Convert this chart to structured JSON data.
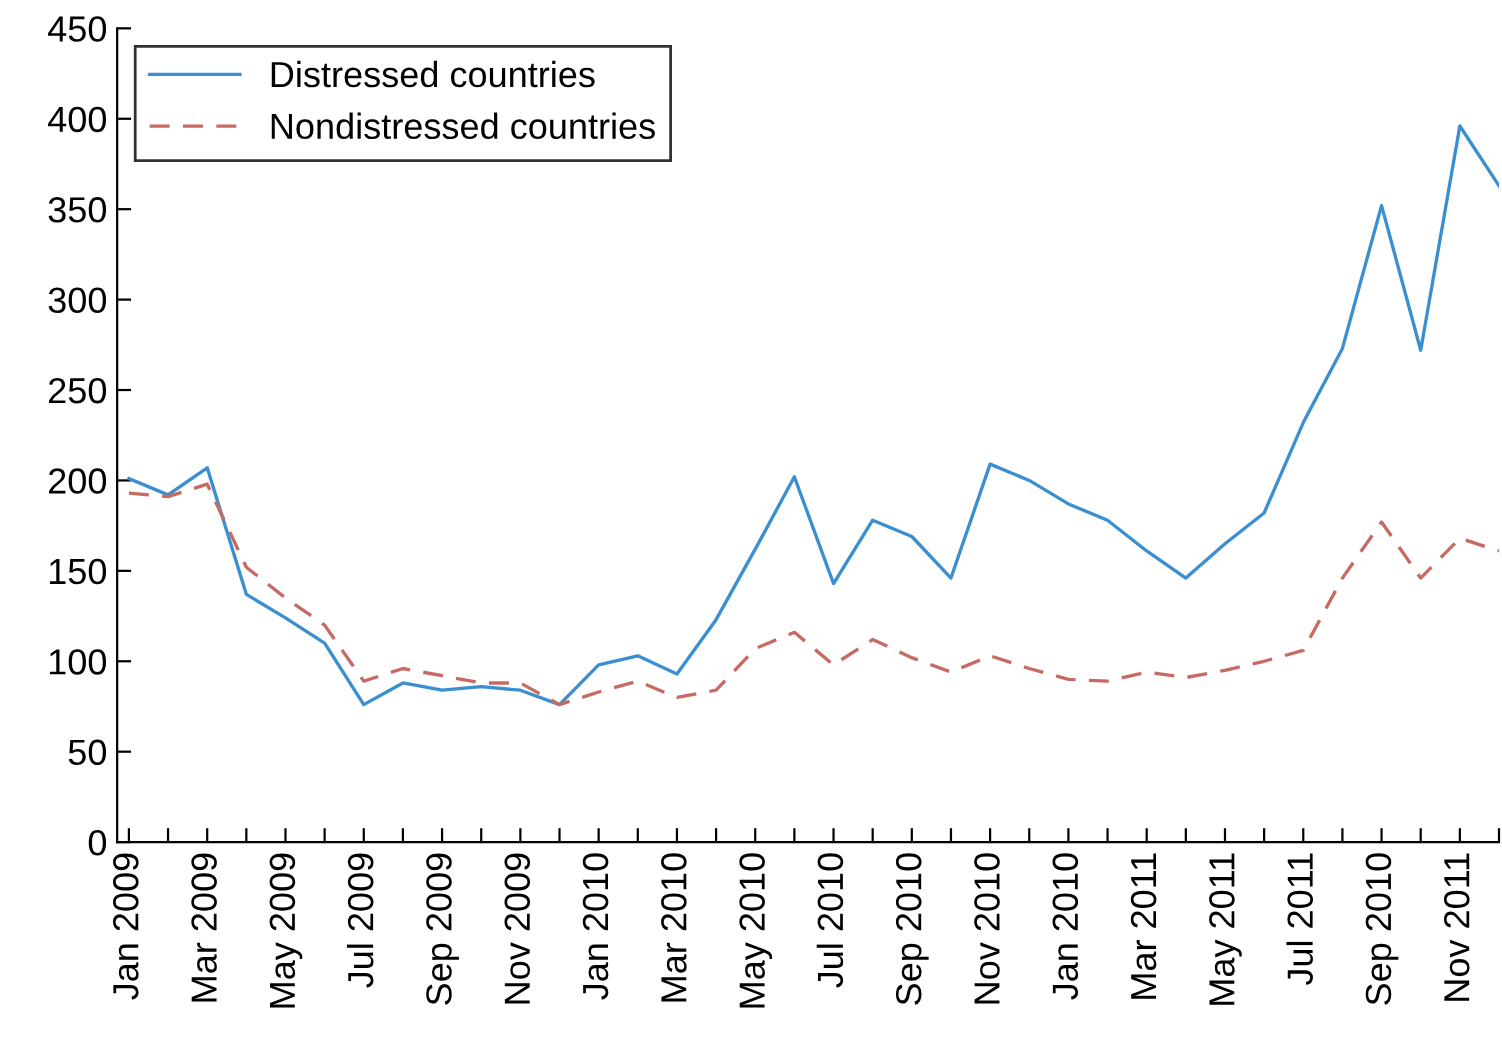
{
  "chart_data": {
    "type": "line",
    "categories": [
      "Jan 2009",
      null,
      "Mar 2009",
      null,
      "May 2009",
      null,
      "Jul 2009",
      null,
      "Sep 2009",
      null,
      "Nov 2009",
      null,
      "Jan 2010",
      null,
      "Mar 2010",
      null,
      "May 2010",
      null,
      "Jul 2010",
      null,
      "Sep 2010",
      null,
      "Nov 2010",
      null,
      "Jan 2010",
      null,
      "Mar 2011",
      null,
      "May 2011",
      null,
      "Jul 2011",
      null,
      "Sep 2010",
      null,
      "Nov 2011",
      null
    ],
    "series": [
      {
        "name": "Distressed countries",
        "color": "#3a8fd0",
        "line_style": "solid",
        "values": [
          201,
          192,
          207,
          137,
          124,
          110,
          76,
          88,
          84,
          86,
          84,
          76,
          98,
          103,
          93,
          123,
          162,
          202,
          143,
          178,
          169,
          146,
          209,
          200,
          187,
          178,
          161,
          146,
          165,
          182,
          232,
          273,
          352,
          272,
          396,
          363
        ]
      },
      {
        "name": "Nondistressed countries",
        "color": "#c86a64",
        "line_style": "dashed",
        "values": [
          193,
          191,
          198,
          152,
          135,
          120,
          89,
          96,
          92,
          88,
          88,
          76,
          83,
          89,
          80,
          84,
          107,
          116,
          98,
          112,
          102,
          94,
          103,
          96,
          90,
          89,
          94,
          91,
          95,
          100,
          106,
          146,
          177,
          146,
          168,
          161
        ]
      }
    ],
    "ylim": [
      0,
      450
    ],
    "yticks": [
      0,
      50,
      100,
      150,
      200,
      250,
      300,
      350,
      400,
      450
    ],
    "grid": false,
    "legend": "top left",
    "marker": "none"
  }
}
